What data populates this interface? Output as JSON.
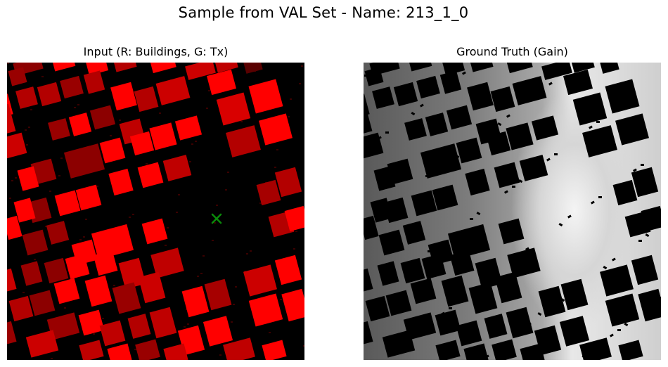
{
  "figure": {
    "title": "Sample from VAL Set - Name: 213_1_0"
  },
  "panels": {
    "input": {
      "title": "Input (R: Buildings, G: Tx)",
      "channels": {
        "buildings": "R",
        "tx": "G"
      },
      "building_color": "#ff0000",
      "tx_marker": "x",
      "tx_color": "#0a8a0a"
    },
    "ground_truth": {
      "title": "Ground Truth (Gain)",
      "colormap": "gray"
    }
  },
  "chart_data": [
    {
      "type": "heatmap",
      "title": "Input (R: Buildings, G: Tx)",
      "xlabel": "",
      "ylabel": "",
      "axes": "off"
    },
    {
      "type": "heatmap",
      "title": "Ground Truth (Gain)",
      "xlabel": "",
      "ylabel": "",
      "axes": "off"
    }
  ]
}
